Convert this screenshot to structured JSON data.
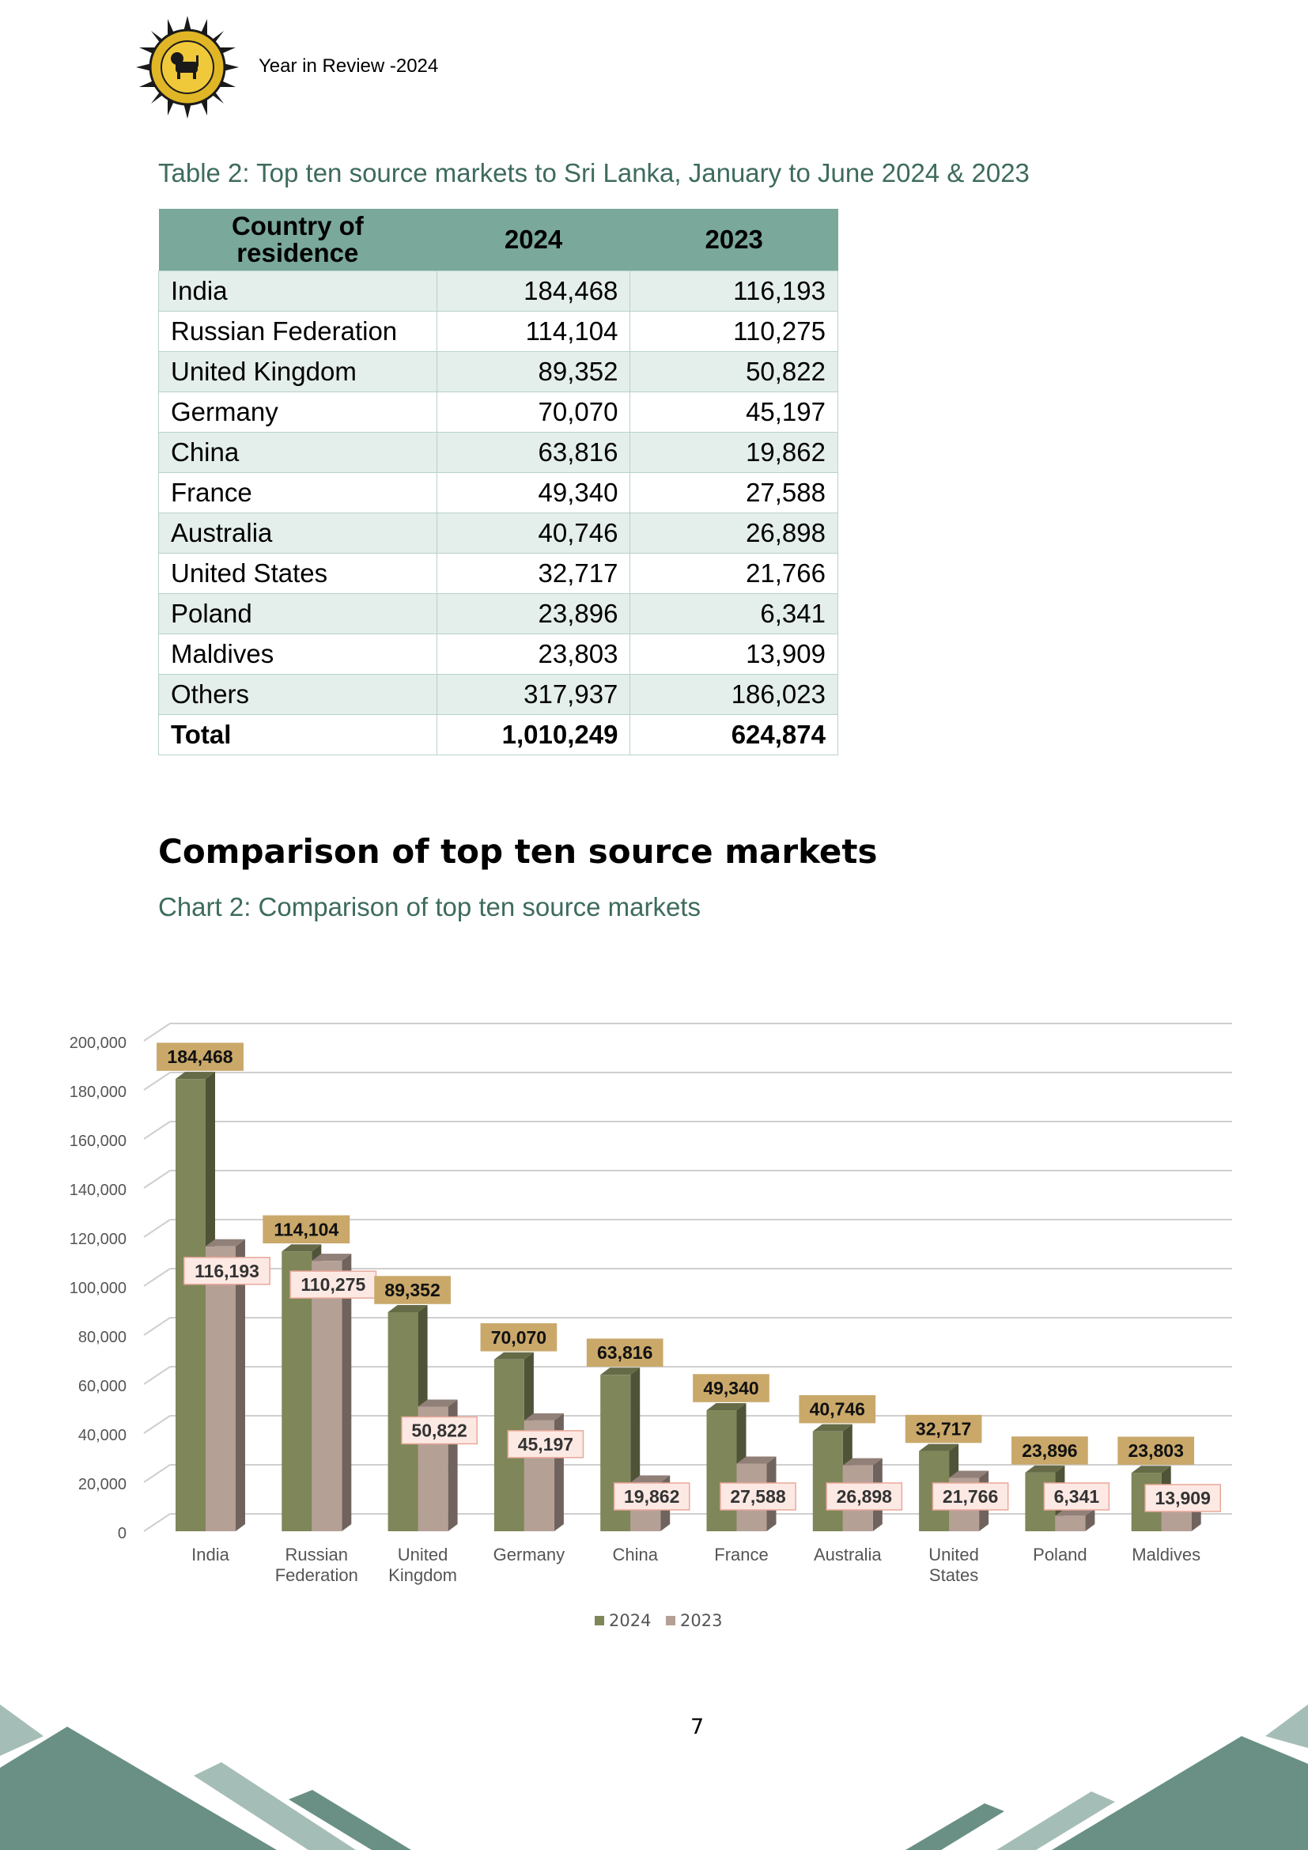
{
  "header": {
    "text": "Year in Review -2024"
  },
  "table": {
    "title": "Table 2: Top ten source markets to Sri Lanka, January to June 2024 & 2023",
    "columns": [
      "Country of residence",
      "2024",
      "2023"
    ],
    "rows": [
      {
        "country": "India",
        "y2024": "184,468",
        "y2023": "116,193"
      },
      {
        "country": "Russian Federation",
        "y2024": "114,104",
        "y2023": "110,275"
      },
      {
        "country": "United Kingdom",
        "y2024": "89,352",
        "y2023": "50,822"
      },
      {
        "country": "Germany",
        "y2024": "70,070",
        "y2023": "45,197"
      },
      {
        "country": "China",
        "y2024": "63,816",
        "y2023": "19,862"
      },
      {
        "country": "France",
        "y2024": "49,340",
        "y2023": "27,588"
      },
      {
        "country": "Australia",
        "y2024": "40,746",
        "y2023": "26,898"
      },
      {
        "country": "United States",
        "y2024": "32,717",
        "y2023": "21,766"
      },
      {
        "country": "Poland",
        "y2024": "23,896",
        "y2023": "6,341"
      },
      {
        "country": "Maldives",
        "y2024": "23,803",
        "y2023": "13,909"
      },
      {
        "country": "Others",
        "y2024": "317,937",
        "y2023": "186,023"
      }
    ],
    "total": {
      "country": "Total",
      "y2024": "1,010,249",
      "y2023": "624,874"
    }
  },
  "section_heading": "Comparison of top ten source markets",
  "chart_caption": "Chart 2: Comparison of top ten source markets",
  "chart_data": {
    "type": "bar",
    "title": "",
    "xlabel": "",
    "ylabel": "",
    "ylim": [
      0,
      200000
    ],
    "yticks": [
      0,
      20000,
      40000,
      60000,
      80000,
      100000,
      120000,
      140000,
      160000,
      180000,
      200000
    ],
    "ytick_labels": [
      "0",
      "20,000",
      "40,000",
      "60,000",
      "80,000",
      "100,000",
      "120,000",
      "140,000",
      "160,000",
      "180,000",
      "200,000"
    ],
    "categories": [
      "India",
      "Russian Federation",
      "United Kingdom",
      "Germany",
      "China",
      "France",
      "Australia",
      "United States",
      "Poland",
      "Maldives"
    ],
    "category_lines": [
      [
        "India"
      ],
      [
        "Russian",
        "Federation"
      ],
      [
        "United",
        "Kingdom"
      ],
      [
        "Germany"
      ],
      [
        "China"
      ],
      [
        "France"
      ],
      [
        "Australia"
      ],
      [
        "United",
        "States"
      ],
      [
        "Poland"
      ],
      [
        "Maldives"
      ]
    ],
    "series": [
      {
        "name": "2024",
        "color": "#7f8659",
        "label_bg": "#c9a86a",
        "values": [
          184468,
          114104,
          89352,
          70070,
          63816,
          49340,
          40746,
          32717,
          23896,
          23803
        ],
        "labels": [
          "184,468",
          "114,104",
          "89,352",
          "70,070",
          "63,816",
          "49,340",
          "40,746",
          "32,717",
          "23,896",
          "23,803"
        ]
      },
      {
        "name": "2023",
        "color": "#b5a096",
        "label_bg": "#fde9e4",
        "values": [
          116193,
          110275,
          50822,
          45197,
          19862,
          27588,
          26898,
          21766,
          6341,
          13909
        ],
        "labels": [
          "116,193",
          "110,275",
          "50,822",
          "45,197",
          "19,862",
          "27,588",
          "26,898",
          "21,766",
          "6,341",
          "13,909"
        ]
      }
    ],
    "grid": true,
    "legend": "bottom-center"
  },
  "page_number": "7",
  "colors": {
    "accent": "#3d6b5e",
    "header_fill": "#7aa89b",
    "row_band": "#e4eeeb",
    "footer": "#6a9085"
  }
}
